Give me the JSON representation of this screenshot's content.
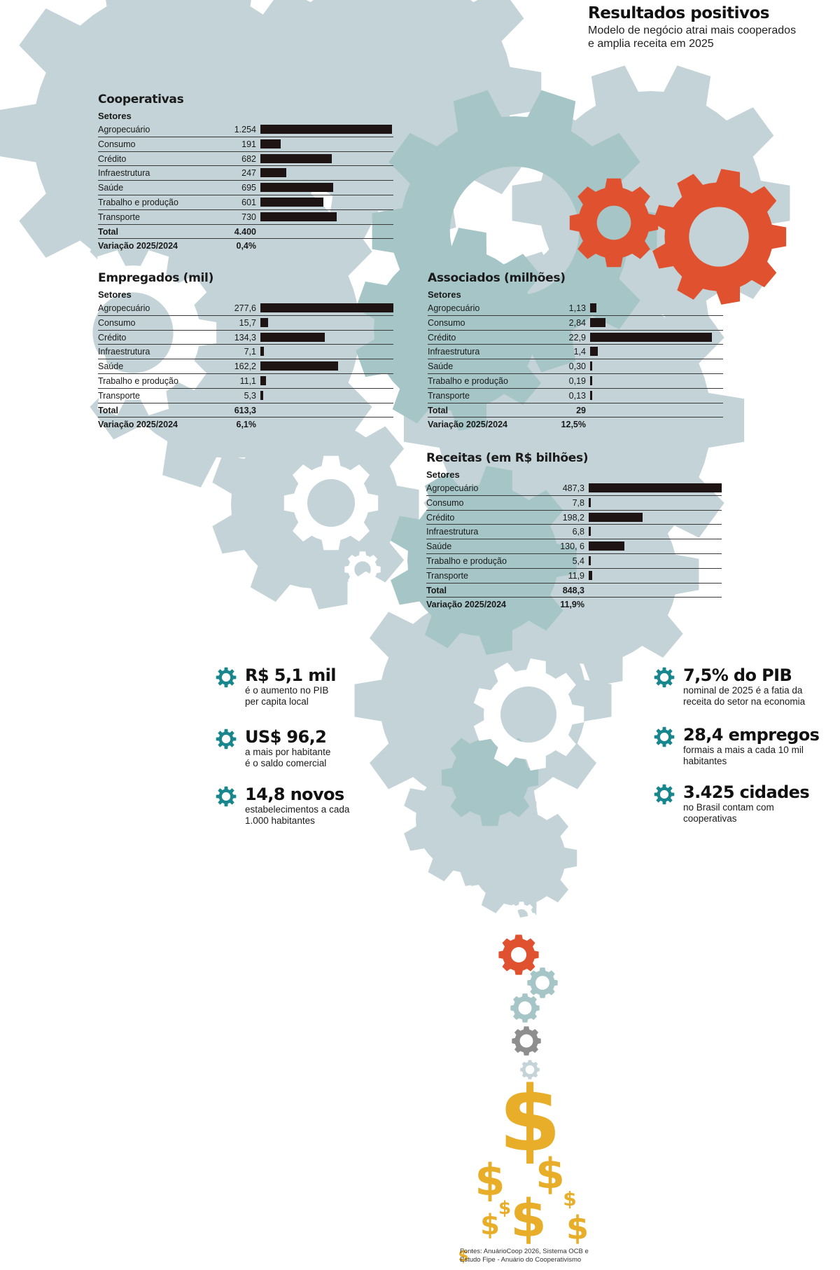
{
  "header": {
    "title": "Resultados positivos",
    "subtitle_line1": "Modelo de negócio atrai mais cooperados",
    "subtitle_line2": "e amplia receita em 2025"
  },
  "colors": {
    "gear_light": "#c4d3d7",
    "gear_teal": "#a5c5c7",
    "gear_orange": "#e0512f",
    "icon_teal": "#17878d",
    "dollar_gold": "#e8ae2a",
    "bar": "#1e1413"
  },
  "chart_data": [
    {
      "type": "bar",
      "orientation": "horizontal",
      "title": "Cooperativas",
      "group_label": "Setores",
      "categories": [
        "Agropecuário",
        "Consumo",
        "Crédito",
        "Infraestrutura",
        "Saúde",
        "Trabalho e produção",
        "Transporte"
      ],
      "labels": [
        "1.254",
        "191",
        "682",
        "247",
        "695",
        "601",
        "730"
      ],
      "values": [
        1254,
        191,
        682,
        247,
        695,
        601,
        730
      ],
      "total_label": "Total",
      "total": "4.400",
      "variation_label": "Variação 2025/2024",
      "variation": "0,4%"
    },
    {
      "type": "bar",
      "orientation": "horizontal",
      "title": "Empregados (mil)",
      "group_label": "Setores",
      "categories": [
        "Agropecuário",
        "Consumo",
        "Crédito",
        "Infraestrutura",
        "Saúde",
        "Trabalho e produção",
        "Transporte"
      ],
      "labels": [
        "277,6",
        "15,7",
        "134,3",
        "7,1",
        "162,2",
        "11,1",
        "5,3"
      ],
      "values": [
        277.6,
        15.7,
        134.3,
        7.1,
        162.2,
        11.1,
        5.3
      ],
      "total_label": "Total",
      "total": "613,3",
      "variation_label": "Variação 2025/2024",
      "variation": "6,1%"
    },
    {
      "type": "bar",
      "orientation": "horizontal",
      "title": "Associados (milhões)",
      "group_label": "Setores",
      "categories": [
        "Agropecuário",
        "Consumo",
        "Crédito",
        "Infraestrutura",
        "Saúde",
        "Trabalho e produção",
        "Transporte"
      ],
      "labels": [
        "1,13",
        "2,84",
        "22,9",
        "1,4",
        "0,30",
        "0,19",
        "0,13"
      ],
      "values": [
        1.13,
        2.84,
        22.9,
        1.4,
        0.3,
        0.19,
        0.13
      ],
      "total_label": "Total",
      "total": "29",
      "variation_label": "Variação 2025/2024",
      "variation": "12,5%"
    },
    {
      "type": "bar",
      "orientation": "horizontal",
      "title": "Receitas (em R$ bilhões)",
      "group_label": "Setores",
      "categories": [
        "Agropecuário",
        "Consumo",
        "Crédito",
        "Infraestrutura",
        "Saúde",
        "Trabalho e produção",
        "Transporte"
      ],
      "labels": [
        "487,3",
        "7,8",
        "198,2",
        "6,8",
        "130, 6",
        "5,4",
        "11,9"
      ],
      "values": [
        487.3,
        7.8,
        198.2,
        6.8,
        130.6,
        5.4,
        11.9
      ],
      "total_label": "Total",
      "total": "848,3",
      "variation_label": "Variação 2025/2024",
      "variation": "11,9%"
    }
  ],
  "stats_left": [
    {
      "big": "R$ 5,1 mil",
      "line1": "é o aumento no PIB",
      "line2": "per capita local",
      "icon": "gear-icon"
    },
    {
      "big": "US$ 96,2",
      "line1": "a mais por habitante",
      "line2": "é o saldo comercial",
      "icon": "gear-icon"
    },
    {
      "big": "14,8 novos",
      "line1": "estabelecimentos a cada",
      "line2": "1.000 habitantes",
      "icon": "gear-icon"
    }
  ],
  "stats_right": [
    {
      "big": "7,5% do PIB",
      "line1": "nominal de 2025 é a fatia da",
      "line2": "receita do setor na economia",
      "icon": "gear-icon"
    },
    {
      "big": "28,4 empregos",
      "line1": "formais a mais a cada 10 mil",
      "line2": "habitantes",
      "icon": "gear-icon"
    },
    {
      "big": "3.425 cidades",
      "line1": "no Brasil contam com",
      "line2": "cooperativas",
      "icon": "gear-icon"
    }
  ],
  "sources": {
    "line1": "Fontes: AnuárioCoop 2026, Sistema OCB e",
    "line2": "Estudo Fipe - Anuário do Cooperativismo"
  }
}
